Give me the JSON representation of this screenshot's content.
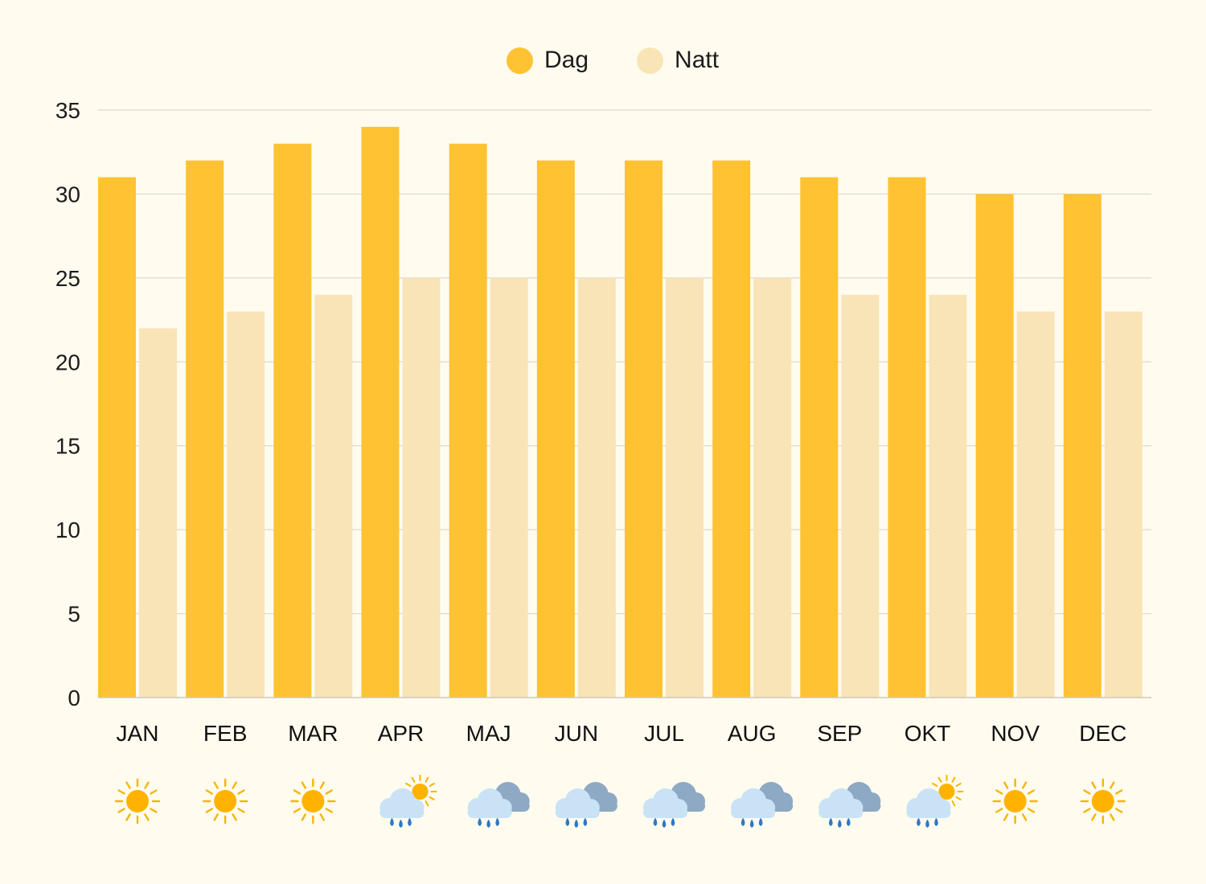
{
  "chart_data": {
    "type": "bar",
    "categories": [
      "JAN",
      "FEB",
      "MAR",
      "APR",
      "MAJ",
      "JUN",
      "JUL",
      "AUG",
      "SEP",
      "OKT",
      "NOV",
      "DEC"
    ],
    "series": [
      {
        "name": "Dag",
        "color": "#ffc232",
        "values": [
          31,
          32,
          33,
          34,
          33,
          32,
          32,
          32,
          31,
          31,
          30,
          30
        ]
      },
      {
        "name": "Natt",
        "color": "#f9e4b7",
        "values": [
          22,
          23,
          24,
          25,
          25,
          25,
          25,
          25,
          24,
          24,
          23,
          23
        ]
      }
    ],
    "yticks": [
      0,
      5,
      10,
      15,
      20,
      25,
      30,
      35
    ],
    "ylim": [
      0,
      35
    ],
    "grid": true,
    "legend": "top-center",
    "weather_icons": [
      "sun-icon",
      "sun-icon",
      "sun-icon",
      "rain-sun-icon",
      "rain-cloud-icon",
      "rain-cloud-icon",
      "rain-cloud-icon",
      "rain-cloud-icon",
      "rain-cloud-icon",
      "rain-sun-icon",
      "sun-icon",
      "sun-icon"
    ]
  }
}
